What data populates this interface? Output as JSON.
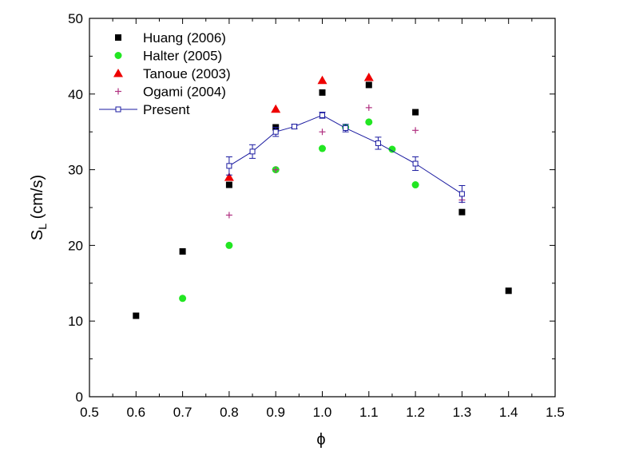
{
  "chart_data": {
    "type": "scatter",
    "xlabel": "ϕ",
    "ylabel_main": "S",
    "ylabel_sub": "L",
    "ylabel_rest": " (cm/s)",
    "xlim": [
      0.5,
      1.5
    ],
    "ylim": [
      0,
      50
    ],
    "xticks": [
      0.5,
      0.6,
      0.7,
      0.8,
      0.9,
      1.0,
      1.1,
      1.2,
      1.3,
      1.4,
      1.5
    ],
    "xtick_labels": [
      "0.5",
      "0.6",
      "0.7",
      "0.8",
      "0.9",
      "1.0",
      "1.1",
      "1.2",
      "1.3",
      "1.4",
      "1.5"
    ],
    "yticks": [
      0,
      10,
      20,
      30,
      40,
      50
    ],
    "ytick_labels": [
      "0",
      "10",
      "20",
      "30",
      "40",
      "50"
    ],
    "legend_position": "top-left",
    "series": [
      {
        "name": "Huang (2006)",
        "marker": "square",
        "color": "#000000",
        "points": [
          [
            0.6,
            10.7
          ],
          [
            0.7,
            19.2
          ],
          [
            0.8,
            28.0
          ],
          [
            0.9,
            35.6
          ],
          [
            1.0,
            40.2
          ],
          [
            1.1,
            41.2
          ],
          [
            1.2,
            37.6
          ],
          [
            1.3,
            24.4
          ],
          [
            1.4,
            14.0
          ]
        ]
      },
      {
        "name": "Halter (2005)",
        "marker": "circle",
        "color": "#22e622",
        "points": [
          [
            0.7,
            13.0
          ],
          [
            0.8,
            20.0
          ],
          [
            0.9,
            30.0
          ],
          [
            1.0,
            32.8
          ],
          [
            1.05,
            35.6
          ],
          [
            1.1,
            36.3
          ],
          [
            1.15,
            32.7
          ],
          [
            1.2,
            28.0
          ]
        ]
      },
      {
        "name": "Tanoue (2003)",
        "marker": "triangle",
        "color": "#ee0000",
        "points": [
          [
            0.8,
            29.0
          ],
          [
            0.9,
            38.0
          ],
          [
            1.0,
            41.8
          ],
          [
            1.1,
            42.2
          ]
        ]
      },
      {
        "name": "Ogami (2004)",
        "marker": "plus",
        "color": "#b03080",
        "points": [
          [
            0.8,
            24.0
          ],
          [
            0.9,
            30.0
          ],
          [
            1.0,
            35.0
          ],
          [
            1.1,
            38.2
          ],
          [
            1.2,
            35.2
          ],
          [
            1.3,
            26.0
          ]
        ]
      },
      {
        "name": "Present",
        "marker": "open-square-line",
        "color": "#1a1aa0",
        "points": [
          [
            0.8,
            30.5
          ],
          [
            0.85,
            32.4
          ],
          [
            0.9,
            35.0
          ],
          [
            0.94,
            35.7
          ],
          [
            1.0,
            37.2
          ],
          [
            1.05,
            35.5
          ],
          [
            1.12,
            33.5
          ],
          [
            1.2,
            30.8
          ],
          [
            1.3,
            26.8
          ]
        ],
        "errors": [
          1.2,
          0.9,
          0.6,
          0.3,
          0.4,
          0.5,
          0.8,
          0.9,
          1.1
        ]
      }
    ]
  }
}
